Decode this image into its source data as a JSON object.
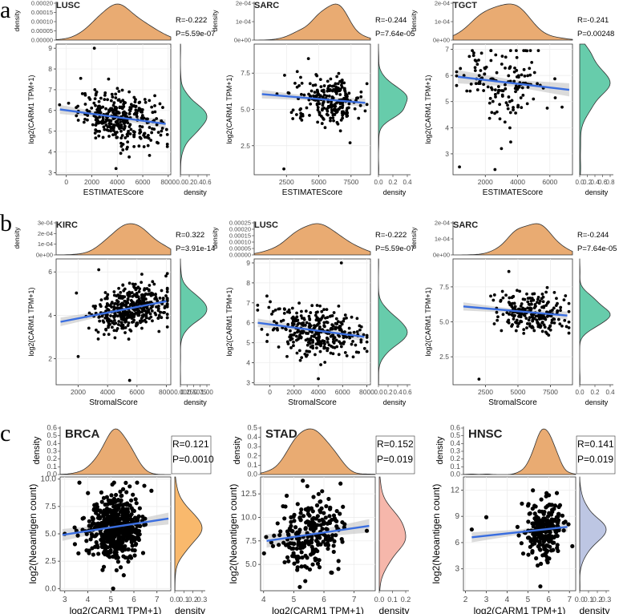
{
  "figure": {
    "rows": [
      {
        "letter": "a"
      },
      {
        "letter": "b"
      },
      {
        "letter": "c"
      }
    ]
  },
  "chart_data": [
    {
      "type": "scatter",
      "row": 0,
      "col": 0,
      "title": "LUSC",
      "xlabel": "ESTIMATEScore",
      "ylabel": "log2(CARM1 TPM+1)",
      "xlim": [
        -800,
        8200
      ],
      "ylim": [
        2.9,
        9.2
      ],
      "xticks": [
        0,
        2000,
        4000,
        6000,
        8000
      ],
      "xtick_labels": [
        "0",
        "2000",
        "4000",
        "6000",
        "8000"
      ],
      "yticks": [
        3,
        4,
        5,
        6,
        7,
        8,
        9
      ],
      "ytick_labels": [
        "3",
        "4",
        "5",
        "6",
        "7",
        "8",
        "9"
      ],
      "top_density": {
        "yticks": [
          0,
          5e-05,
          0.0001,
          0.00015,
          0.0002
        ],
        "ytick_labels": [
          "0.00000",
          "0.00005",
          "0.00010",
          "0.00015",
          "0.00020"
        ]
      },
      "right_density": {
        "xticks": [
          0,
          0.2,
          0.4,
          0.6
        ],
        "xtick_labels": [
          "0.0",
          "0.2",
          "0.4",
          "0.6"
        ]
      },
      "R": "R=-0.222",
      "P": "P=5.59e-07",
      "n_points": 330,
      "x_mean": 4200,
      "x_sd": 1600,
      "y_mean": 5.7,
      "y_sd": 0.6,
      "fit": {
        "x": [
          -500,
          7800
        ],
        "y": [
          6.05,
          5.35
        ]
      },
      "density_fill": "#5fc9a6",
      "top_fill": "#e8a66a",
      "outliers": [
        [
          2200,
          9.0
        ],
        [
          3900,
          3.2
        ]
      ]
    },
    {
      "type": "scatter",
      "row": 0,
      "col": 1,
      "title": "SARC",
      "xlabel": "ESTIMATEScore",
      "ylabel": "log2(CARM1 TPM+1)",
      "xlim": [
        0,
        9000
      ],
      "ylim": [
        0.5,
        9.5
      ],
      "xticks": [
        2500,
        5000,
        7500
      ],
      "xtick_labels": [
        "2500",
        "5000",
        "7500"
      ],
      "yticks": [
        2.5,
        5.0,
        7.5
      ],
      "ytick_labels": [
        "2.5",
        "5.0",
        "7.5"
      ],
      "top_density": {
        "yticks": [
          0,
          0.0001,
          0.0002
        ],
        "ytick_labels": [
          "0e+00",
          "1e-04",
          "2e-04"
        ]
      },
      "right_density": {
        "xticks": [
          0,
          0.2,
          0.4
        ],
        "xtick_labels": [
          "0.0",
          "0.2",
          "0.4"
        ]
      },
      "R": "R=-0.244",
      "P": "P=7.64e-05",
      "n_points": 230,
      "x_mean": 5800,
      "x_sd": 1300,
      "y_mean": 5.7,
      "y_sd": 0.8,
      "fit": {
        "x": [
          600,
          8600
        ],
        "y": [
          6.05,
          5.45
        ]
      },
      "density_fill": "#5fc9a6",
      "top_fill": "#e8a66a",
      "outliers": [
        [
          2300,
          0.9
        ],
        [
          4200,
          8.5
        ]
      ]
    },
    {
      "type": "scatter",
      "row": 0,
      "col": 2,
      "title": "TGCT",
      "xlabel": "ESTIMATEScore",
      "ylabel": "log2(CARM1 TPM+1)",
      "xlim": [
        0,
        7400
      ],
      "ylim": [
        2.2,
        7.2
      ],
      "xticks": [
        2000,
        4000,
        6000
      ],
      "xtick_labels": [
        "2000",
        "4000",
        "6000"
      ],
      "yticks": [
        3,
        4,
        5,
        6,
        7
      ],
      "ytick_labels": [
        "3",
        "4",
        "5",
        "6",
        "7"
      ],
      "top_density": {
        "yticks": [
          0,
          0.0001,
          0.0002
        ],
        "ytick_labels": [
          "0e+00",
          "1e-04",
          "2e-04"
        ]
      },
      "right_density": {
        "xticks": [
          0,
          0.2,
          0.4,
          0.6,
          0.8
        ],
        "xtick_labels": [
          "0.0",
          "0.2",
          "0.4",
          "0.6",
          "0.8"
        ]
      },
      "R": "R=-0.241",
      "P": "P=0.00248",
      "n_points": 150,
      "x_mean": 3200,
      "x_sd": 1400,
      "y_mean": 5.8,
      "y_sd": 0.7,
      "fit": {
        "x": [
          300,
          7200
        ],
        "y": [
          5.95,
          5.45
        ]
      },
      "density_fill": "#5fc9a6",
      "top_fill": "#e8a66a",
      "outliers": [
        [
          400,
          2.5
        ],
        [
          2600,
          2.4
        ],
        [
          3000,
          3.2
        ]
      ]
    },
    {
      "type": "scatter",
      "row": 1,
      "col": 0,
      "title": "KIRC",
      "xlabel": "StromalScore",
      "ylabel": "log2(CARM1 TPM+1)",
      "xlim": [
        500,
        8300
      ],
      "ylim": [
        0.8,
        6.6
      ],
      "xticks": [
        2000,
        4000,
        6000,
        8000
      ],
      "xtick_labels": [
        "2000",
        "4000",
        "6000",
        "8000"
      ],
      "yticks": [
        2,
        4,
        6
      ],
      "ytick_labels": [
        "2",
        "4",
        "6"
      ],
      "top_density": {
        "yticks": [
          0,
          0.0001,
          0.0002,
          0.0003
        ],
        "ytick_labels": [
          "0e+00",
          "1e-04",
          "2e-04",
          "3e-04"
        ]
      },
      "right_density": {
        "xticks": [
          0,
          0.25,
          0.5,
          0.75,
          1.0
        ],
        "xtick_labels": [
          "0.00",
          "0.25",
          "0.50",
          "0.75",
          "1.00"
        ]
      },
      "R": "R=0.322",
      "P": "P=3.91e-14",
      "n_points": 420,
      "x_mean": 5600,
      "x_sd": 1300,
      "y_mean": 4.35,
      "y_sd": 0.55,
      "fit": {
        "x": [
          800,
          8000
        ],
        "y": [
          3.7,
          4.65
        ]
      },
      "density_fill": "#5fc9a6",
      "top_fill": "#e8a66a",
      "outliers": [
        [
          5500,
          1.0
        ],
        [
          2000,
          2.1
        ],
        [
          3400,
          6.1
        ]
      ]
    },
    {
      "type": "scatter",
      "row": 1,
      "col": 1,
      "title": "LUSC",
      "xlabel": "StromalScore",
      "ylabel": "log2(CARM1 TPM+1)",
      "xlim": [
        -1300,
        8300
      ],
      "ylim": [
        2.9,
        9.2
      ],
      "xticks": [
        0,
        2000,
        4000,
        6000,
        8000
      ],
      "xtick_labels": [
        "0",
        "2000",
        "4000",
        "6000",
        "8000"
      ],
      "yticks": [
        3,
        4,
        5,
        6,
        7,
        8,
        9
      ],
      "ytick_labels": [
        "3",
        "4",
        "5",
        "6",
        "7",
        "8",
        "9"
      ],
      "top_density": {
        "yticks": [
          0,
          5e-05,
          0.0001,
          0.00015,
          0.0002,
          0.00025
        ],
        "ytick_labels": [
          "0.00000",
          "0.00005",
          "0.00010",
          "0.00015",
          "0.00020",
          "0.00025"
        ]
      },
      "right_density": {
        "xticks": [
          0,
          0.2,
          0.4,
          0.6
        ],
        "xtick_labels": [
          "0.0",
          "0.2",
          "0.4",
          "0.6"
        ]
      },
      "R": "R=-0.222",
      "P": "P=5.59e-07",
      "n_points": 330,
      "x_mean": 3800,
      "x_sd": 1800,
      "y_mean": 5.7,
      "y_sd": 0.6,
      "fit": {
        "x": [
          -1000,
          7800
        ],
        "y": [
          6.0,
          5.3
        ]
      },
      "density_fill": "#5fc9a6",
      "top_fill": "#e8a66a",
      "outliers": [
        [
          5900,
          9.0
        ],
        [
          4000,
          3.2
        ]
      ]
    },
    {
      "type": "scatter",
      "row": 1,
      "col": 2,
      "title": "SARC",
      "xlabel": "StromalScore",
      "ylabel": "log2(CARM1 TPM+1)",
      "xlim": [
        0,
        9200
      ],
      "ylim": [
        0.5,
        9.5
      ],
      "xticks": [
        2500,
        5000,
        7500
      ],
      "xtick_labels": [
        "2500",
        "5000",
        "7500"
      ],
      "yticks": [
        2.5,
        5.0,
        7.5
      ],
      "ytick_labels": [
        "2.5",
        "5.0",
        "7.5"
      ],
      "top_density": {
        "yticks": [
          0,
          0.0001,
          0.0002
        ],
        "ytick_labels": [
          "0e+00",
          "1e-04",
          "2e-04"
        ]
      },
      "right_density": {
        "xticks": [
          0,
          0.2,
          0.4
        ],
        "xtick_labels": [
          "0.0",
          "0.2",
          "0.4"
        ]
      },
      "R": "R=-0.244",
      "P": "P=7.64e-05",
      "n_points": 230,
      "x_mean": 6000,
      "x_sd": 1300,
      "y_mean": 5.8,
      "y_sd": 0.8,
      "fit": {
        "x": [
          800,
          8800
        ],
        "y": [
          6.1,
          5.45
        ]
      },
      "density_fill": "#5fc9a6",
      "top_fill": "#e8a66a",
      "outliers": [
        [
          2000,
          0.9
        ],
        [
          4300,
          8.6
        ]
      ]
    },
    {
      "type": "scatter",
      "row": 2,
      "col": 0,
      "title": "BRCA",
      "xlabel": "log2(CARM1 TPM+1)",
      "ylabel": "log2(Neoantigen count)",
      "xlim": [
        2.8,
        7.6
      ],
      "ylim": [
        -0.2,
        10.2
      ],
      "xticks": [
        3,
        4,
        5,
        6,
        7
      ],
      "xtick_labels": [
        "3",
        "4",
        "5",
        "6",
        "7"
      ],
      "yticks": [
        0.0,
        2.5,
        5.0,
        7.5,
        10.0
      ],
      "ytick_labels": [
        "0.0",
        "2.5",
        "5.0",
        "7.5",
        "10.0"
      ],
      "top_density": {
        "yticks": [
          0,
          0.1,
          0.2,
          0.3,
          0.4,
          0.5,
          0.6
        ],
        "ytick_labels": [
          "0.0",
          "0.1",
          "0.2",
          "0.3",
          "0.4",
          "0.5",
          "0.6"
        ]
      },
      "right_density": {
        "xticks": [
          0,
          0.1,
          0.2,
          0.3
        ],
        "xtick_labels": [
          "0.0",
          "0.1",
          "0.2",
          "0.3"
        ]
      },
      "R": "R=0.121",
      "P": "P=0.0010",
      "n_points": 520,
      "x_mean": 5.2,
      "x_sd": 0.6,
      "y_mean": 5.6,
      "y_sd": 1.5,
      "fit": {
        "x": [
          2.9,
          7.5
        ],
        "y": [
          4.9,
          6.4
        ]
      },
      "density_fill": "#f9b565",
      "top_fill": "#e8a66a",
      "outliers": [
        [
          5.1,
          0.0
        ],
        [
          3.0,
          5.0
        ]
      ]
    },
    {
      "type": "scatter",
      "row": 2,
      "col": 1,
      "title": "STAD",
      "xlabel": "log2(CARM1 TPM+1)",
      "ylabel": "log2(Neoantigen count)",
      "xlim": [
        3.9,
        7.7
      ],
      "ylim": [
        2.2,
        14.3
      ],
      "xticks": [
        4,
        5,
        6,
        7
      ],
      "xtick_labels": [
        "4",
        "5",
        "6",
        "7"
      ],
      "yticks": [
        5.0,
        7.5,
        10.0,
        12.5
      ],
      "ytick_labels": [
        "5.0",
        "7.5",
        "10.0",
        "12.5"
      ],
      "top_density": {
        "yticks": [
          0,
          0.1,
          0.2,
          0.3,
          0.4,
          0.5
        ],
        "ytick_labels": [
          "0.0",
          "0.1",
          "0.2",
          "0.3",
          "0.4",
          "0.5"
        ]
      },
      "right_density": {
        "xticks": [
          0,
          0.1,
          0.2
        ],
        "xtick_labels": [
          "0.0",
          "0.1",
          "0.2"
        ]
      },
      "R": "R=0.152",
      "P": "P=0.019",
      "n_points": 230,
      "x_mean": 5.6,
      "x_sd": 0.6,
      "y_mean": 8.3,
      "y_sd": 2.0,
      "fit": {
        "x": [
          4.1,
          7.5
        ],
        "y": [
          7.5,
          9.1
        ]
      },
      "density_fill": "#f6b3a7",
      "top_fill": "#e8a66a",
      "outliers": [
        [
          5.3,
          13.9
        ],
        [
          5.2,
          2.6
        ]
      ]
    },
    {
      "type": "scatter",
      "row": 2,
      "col": 2,
      "title": "HNSC",
      "xlabel": "log2(CARM1 TPM+1)",
      "ylabel": "log2(Neoantigen count)",
      "xlim": [
        1.9,
        7.3
      ],
      "ylim": [
        0.5,
        13.5
      ],
      "xticks": [
        2,
        3,
        4,
        5,
        6,
        7
      ],
      "xtick_labels": [
        "2",
        "3",
        "4",
        "5",
        "6",
        "7"
      ],
      "yticks": [
        3,
        6,
        9,
        12
      ],
      "ytick_labels": [
        "3",
        "6",
        "9",
        "12"
      ],
      "top_density": {
        "yticks": [
          0,
          0.1,
          0.2,
          0.3,
          0.4,
          0.5,
          0.6
        ],
        "ytick_labels": [
          "0.0",
          "0.1",
          "0.2",
          "0.3",
          "0.4",
          "0.5",
          "0.6"
        ]
      },
      "right_density": {
        "xticks": [
          0,
          0.1,
          0.2,
          0.3
        ],
        "xtick_labels": [
          "0.0",
          "0.1",
          "0.2",
          "0.3"
        ]
      },
      "R": "R=0.141",
      "P": "P=0.019",
      "n_points": 230,
      "x_mean": 5.8,
      "x_sd": 0.45,
      "y_mean": 7.4,
      "y_sd": 1.6,
      "fit": {
        "x": [
          2.3,
          6.9
        ],
        "y": [
          6.6,
          7.8
        ]
      },
      "density_fill": "#b9c3e2",
      "top_fill": "#e8a66a",
      "outliers": [
        [
          2.3,
          7.5
        ],
        [
          3.0,
          8.9
        ],
        [
          5.6,
          1.0
        ]
      ]
    }
  ]
}
